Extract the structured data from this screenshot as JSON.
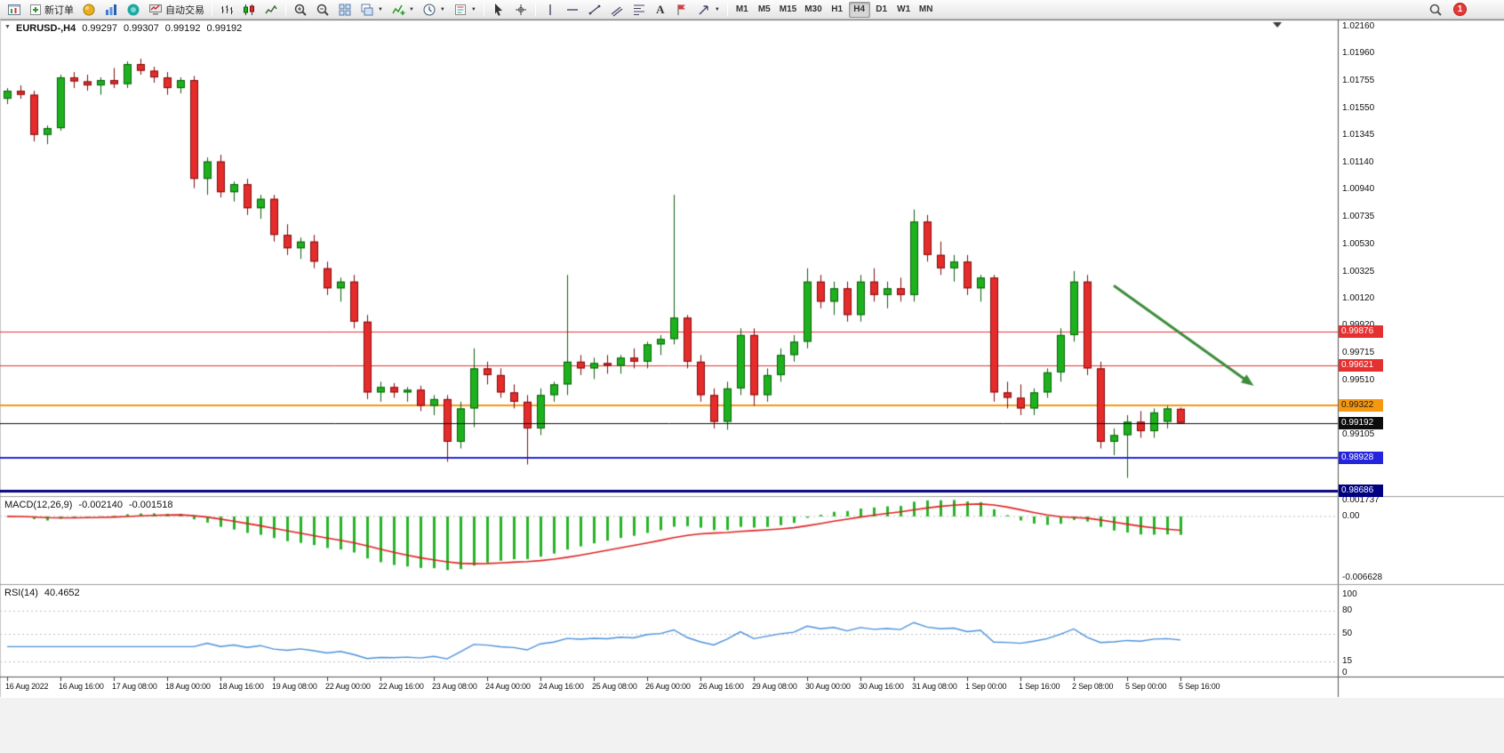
{
  "toolbar": {
    "new_order": "新订单",
    "auto_trading": "自动交易",
    "timeframes": [
      "M1",
      "M5",
      "M15",
      "M30",
      "H1",
      "H4",
      "D1",
      "W1",
      "MN"
    ],
    "active_timeframe": "H4",
    "notification_count": "1"
  },
  "chart": {
    "title": "EURUSD-,H4",
    "open": "0.99297",
    "high": "0.99307",
    "low": "0.99192",
    "close": "0.99192"
  },
  "price_axis": {
    "labels": [
      "1.02160",
      "1.01960",
      "1.01755",
      "1.01550",
      "1.01345",
      "1.01140",
      "1.00940",
      "1.00735",
      "1.00530",
      "1.00325",
      "1.00120",
      "0.99920",
      "0.99715",
      "0.99510",
      "0.99105",
      "0.98900"
    ]
  },
  "macd": {
    "label": "MACD(12,26,9)",
    "value_main": "-0.002140",
    "value_signal": "-0.001518",
    "axis_labels": [
      "0.001737",
      "0.00",
      "-0.006628"
    ],
    "ylim": [
      -0.007,
      0.002
    ],
    "histogram_color": "#25b325",
    "signal_color": "#dd2222"
  },
  "rsi": {
    "label": "RSI(14)",
    "value": "40.4652",
    "levels": [
      80,
      50,
      15
    ],
    "axis_labels": [
      "100",
      "80",
      "50",
      "15",
      "0"
    ],
    "line_color": "#4a90d9"
  },
  "chart_data": {
    "type": "candlestick",
    "title": "EURUSD-,H4",
    "symbol": "EURUSD-",
    "timeframe": "H4",
    "ylim": [
      0.9865,
      1.022
    ],
    "bull_color": "#1db21d",
    "bear_color": "#e62b2b",
    "time_labels": [
      "16 Aug 2022",
      "16 Aug 16:00",
      "17 Aug 08:00",
      "18 Aug 00:00",
      "18 Aug 16:00",
      "19 Aug 08:00",
      "22 Aug 00:00",
      "22 Aug 16:00",
      "23 Aug 08:00",
      "24 Aug 00:00",
      "24 Aug 16:00",
      "25 Aug 08:00",
      "26 Aug 00:00",
      "26 Aug 16:00",
      "29 Aug 08:00",
      "30 Aug 00:00",
      "30 Aug 16:00",
      "31 Aug 08:00",
      "1 Sep 00:00",
      "1 Sep 16:00",
      "2 Sep 08:00",
      "5 Sep 00:00",
      "5 Sep 16:00"
    ],
    "hlines": [
      {
        "price": 0.99876,
        "label": "0.99876",
        "color": "#e53030",
        "width": 1
      },
      {
        "price": 0.99621,
        "label": "0.99621",
        "color": "#e53030",
        "width": 1
      },
      {
        "price": 0.99322,
        "label": "0.99322",
        "color": "#f5980f",
        "width": 2,
        "text_color": "#1a1a1a"
      },
      {
        "price": 0.99192,
        "label": "0.99192",
        "color": "#0d0d0d",
        "width": 1,
        "is_price": true
      },
      {
        "price": 0.98928,
        "label": "0.98928",
        "color": "#2424dd",
        "width": 2
      },
      {
        "price": 0.98686,
        "label": "0.98686",
        "color": "#000080",
        "width": 3
      }
    ],
    "trend_arrow": {
      "from_bar": 83,
      "from_price": 1.0022,
      "to_bar": 93.5,
      "to_price": 0.9947,
      "color": "#3c8c3c"
    },
    "candles_ohlc": [
      [
        1.0162,
        1.017,
        1.0158,
        1.0168
      ],
      [
        1.0168,
        1.0172,
        1.0162,
        1.0165
      ],
      [
        1.0165,
        1.0168,
        1.013,
        1.0135
      ],
      [
        1.0135,
        1.0142,
        1.0128,
        1.014
      ],
      [
        1.014,
        1.018,
        1.0138,
        1.0178
      ],
      [
        1.0178,
        1.0182,
        1.017,
        1.0175
      ],
      [
        1.0175,
        1.018,
        1.0168,
        1.0172
      ],
      [
        1.0172,
        1.0178,
        1.0165,
        1.0176
      ],
      [
        1.0176,
        1.0185,
        1.017,
        1.0173
      ],
      [
        1.0173,
        1.019,
        1.017,
        1.0188
      ],
      [
        1.0188,
        1.0192,
        1.018,
        1.0183
      ],
      [
        1.0183,
        1.0186,
        1.0174,
        1.0178
      ],
      [
        1.0178,
        1.0182,
        1.0165,
        1.017
      ],
      [
        1.017,
        1.0178,
        1.0166,
        1.0176
      ],
      [
        1.0176,
        1.0179,
        1.0095,
        1.0102
      ],
      [
        1.0102,
        1.0118,
        1.009,
        1.0115
      ],
      [
        1.0115,
        1.012,
        1.0088,
        1.0092
      ],
      [
        1.0092,
        1.01,
        1.0085,
        1.0098
      ],
      [
        1.0098,
        1.0102,
        1.0075,
        1.008
      ],
      [
        1.008,
        1.009,
        1.0072,
        1.0087
      ],
      [
        1.0087,
        1.009,
        1.0055,
        1.006
      ],
      [
        1.006,
        1.0068,
        1.0045,
        1.005
      ],
      [
        1.005,
        1.0058,
        1.0042,
        1.0055
      ],
      [
        1.0055,
        1.006,
        1.0035,
        1.004
      ],
      [
        1.0035,
        1.004,
        1.0015,
        1.002
      ],
      [
        1.002,
        1.0028,
        1.001,
        1.0025
      ],
      [
        1.0025,
        1.003,
        0.999,
        0.9995
      ],
      [
        0.9995,
        1.0,
        0.9937,
        0.9942
      ],
      [
        0.9942,
        0.995,
        0.9935,
        0.9946
      ],
      [
        0.9946,
        0.9949,
        0.9938,
        0.9942
      ],
      [
        0.9942,
        0.9946,
        0.9935,
        0.9944
      ],
      [
        0.9944,
        0.9947,
        0.9928,
        0.9932
      ],
      [
        0.9932,
        0.994,
        0.9925,
        0.9937
      ],
      [
        0.9937,
        0.994,
        0.989,
        0.9905
      ],
      [
        0.9905,
        0.9935,
        0.99,
        0.993
      ],
      [
        0.993,
        0.9975,
        0.9916,
        0.996
      ],
      [
        0.996,
        0.9965,
        0.9948,
        0.9955
      ],
      [
        0.9955,
        0.996,
        0.9938,
        0.9942
      ],
      [
        0.9942,
        0.9948,
        0.993,
        0.9935
      ],
      [
        0.9935,
        0.994,
        0.9888,
        0.9915
      ],
      [
        0.9915,
        0.9945,
        0.991,
        0.994
      ],
      [
        0.994,
        0.995,
        0.9935,
        0.9948
      ],
      [
        0.9948,
        1.003,
        0.994,
        0.9965
      ],
      [
        0.9965,
        0.997,
        0.9955,
        0.996
      ],
      [
        0.996,
        0.9968,
        0.9952,
        0.9964
      ],
      [
        0.9964,
        0.997,
        0.9956,
        0.9962
      ],
      [
        0.9962,
        0.997,
        0.9956,
        0.9968
      ],
      [
        0.9968,
        0.9975,
        0.996,
        0.9965
      ],
      [
        0.9965,
        0.998,
        0.996,
        0.9978
      ],
      [
        0.9978,
        0.9985,
        0.997,
        0.9982
      ],
      [
        0.9982,
        1.009,
        0.9978,
        0.9998
      ],
      [
        0.9998,
        1.0,
        0.996,
        0.9965
      ],
      [
        0.9965,
        0.997,
        0.9935,
        0.994
      ],
      [
        0.994,
        0.9945,
        0.9915,
        0.992
      ],
      [
        0.992,
        0.995,
        0.9914,
        0.9945
      ],
      [
        0.9945,
        0.999,
        0.994,
        0.9985
      ],
      [
        0.9985,
        0.999,
        0.9932,
        0.994
      ],
      [
        0.994,
        0.996,
        0.9935,
        0.9955
      ],
      [
        0.9955,
        0.9975,
        0.995,
        0.997
      ],
      [
        0.997,
        0.9985,
        0.9965,
        0.998
      ],
      [
        0.998,
        1.0035,
        0.9975,
        1.0025
      ],
      [
        1.0025,
        1.003,
        1.0005,
        1.001
      ],
      [
        1.001,
        1.0025,
        1.0,
        1.002
      ],
      [
        1.002,
        1.0025,
        0.9995,
        1.0
      ],
      [
        1.0,
        1.003,
        0.9995,
        1.0025
      ],
      [
        1.0025,
        1.0035,
        1.001,
        1.0015
      ],
      [
        1.0015,
        1.0025,
        1.0005,
        1.002
      ],
      [
        1.002,
        1.0028,
        1.001,
        1.0015
      ],
      [
        1.0015,
        1.0079,
        1.001,
        1.007
      ],
      [
        1.007,
        1.0075,
        1.004,
        1.0045
      ],
      [
        1.0045,
        1.0055,
        1.003,
        1.0035
      ],
      [
        1.0035,
        1.0045,
        1.0025,
        1.004
      ],
      [
        1.004,
        1.0045,
        1.0015,
        1.002
      ],
      [
        1.002,
        1.003,
        1.001,
        1.0028
      ],
      [
        1.0028,
        1.003,
        0.9935,
        0.9942
      ],
      [
        0.9942,
        0.995,
        0.993,
        0.9938
      ],
      [
        0.9938,
        0.9948,
        0.9925,
        0.993
      ],
      [
        0.993,
        0.9945,
        0.9925,
        0.9942
      ],
      [
        0.9942,
        0.996,
        0.9938,
        0.9957
      ],
      [
        0.9957,
        0.999,
        0.995,
        0.9985
      ],
      [
        0.9985,
        1.0033,
        0.998,
        1.0025
      ],
      [
        1.0025,
        1.003,
        0.9955,
        0.996
      ],
      [
        0.996,
        0.9965,
        0.99,
        0.9905
      ],
      [
        0.9905,
        0.9915,
        0.9895,
        0.991
      ],
      [
        0.991,
        0.9925,
        0.9878,
        0.992
      ],
      [
        0.992,
        0.9928,
        0.9908,
        0.9913
      ],
      [
        0.9913,
        0.993,
        0.9908,
        0.9927
      ],
      [
        0.992,
        0.9932,
        0.9915,
        0.993
      ],
      [
        0.99297,
        0.99307,
        0.99192,
        0.99192
      ]
    ]
  }
}
